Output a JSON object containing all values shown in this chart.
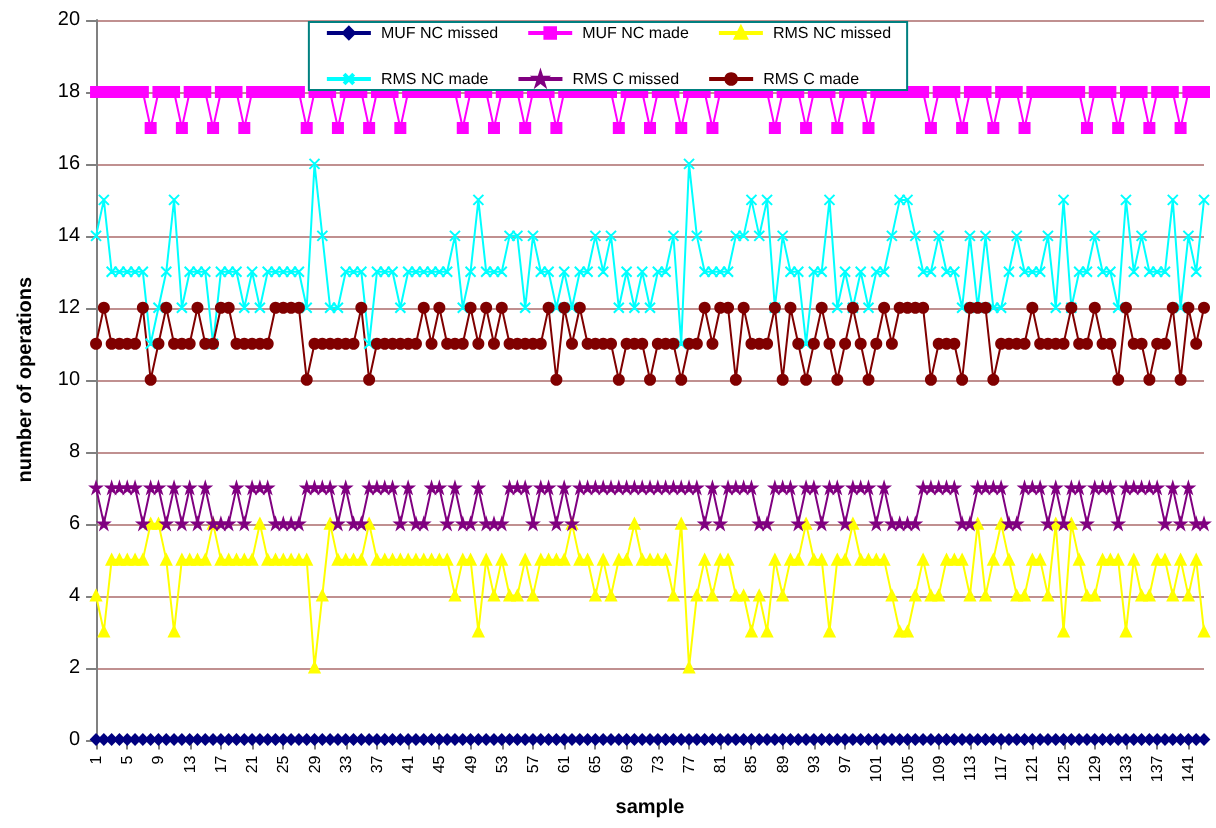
{
  "chart_data": {
    "type": "line",
    "xlabel": "sample",
    "ylabel": "number of operations",
    "x": [
      1,
      2,
      3,
      4,
      5,
      6,
      7,
      8,
      9,
      10,
      11,
      12,
      13,
      14,
      15,
      16,
      17,
      18,
      19,
      20,
      21,
      22,
      23,
      24,
      25,
      26,
      27,
      28,
      29,
      30,
      31,
      32,
      33,
      34,
      35,
      36,
      37,
      38,
      39,
      40,
      41,
      42,
      43,
      44,
      45,
      46,
      47,
      48,
      49,
      50,
      51,
      52,
      53,
      54,
      55,
      56,
      57,
      58,
      59,
      60,
      61,
      62,
      63,
      64,
      65,
      66,
      67,
      68,
      69,
      70,
      71,
      72,
      73,
      74,
      75,
      76,
      77,
      78,
      79,
      80,
      81,
      82,
      83,
      84,
      85,
      86,
      87,
      88,
      89,
      90,
      91,
      92,
      93,
      94,
      95,
      96,
      97,
      98,
      99,
      100,
      101,
      102,
      103,
      104,
      105,
      106,
      107,
      108,
      109,
      110,
      111,
      112,
      113,
      114,
      115,
      116,
      117,
      118,
      119,
      120,
      121,
      122,
      123,
      124,
      125,
      126,
      127,
      128,
      129,
      130,
      131,
      132,
      133,
      134,
      135,
      136,
      137,
      138,
      139,
      140,
      141,
      142,
      143
    ],
    "xlim": [
      1,
      143
    ],
    "xticks": [
      1,
      5,
      9,
      13,
      17,
      21,
      25,
      29,
      33,
      37,
      41,
      45,
      49,
      53,
      57,
      61,
      65,
      69,
      73,
      77,
      81,
      85,
      89,
      93,
      97,
      101,
      105,
      109,
      113,
      117,
      121,
      125,
      129,
      133,
      137,
      141
    ],
    "ylim": [
      0,
      20
    ],
    "yticks": [
      0,
      2,
      4,
      6,
      8,
      10,
      12,
      14,
      16,
      18,
      20
    ],
    "grid": "y",
    "legend": "top",
    "series": [
      {
        "name": "MUF NC missed",
        "color": "#000080",
        "marker": "diamond",
        "values": [
          0,
          0,
          0,
          0,
          0,
          0,
          0,
          0,
          0,
          0,
          0,
          0,
          0,
          0,
          0,
          0,
          0,
          0,
          0,
          0,
          0,
          0,
          0,
          0,
          0,
          0,
          0,
          0,
          0,
          0,
          0,
          0,
          0,
          0,
          0,
          0,
          0,
          0,
          0,
          0,
          0,
          0,
          0,
          0,
          0,
          0,
          0,
          0,
          0,
          0,
          0,
          0,
          0,
          0,
          0,
          0,
          0,
          0,
          0,
          0,
          0,
          0,
          0,
          0,
          0,
          0,
          0,
          0,
          0,
          0,
          0,
          0,
          0,
          0,
          0,
          0,
          0,
          0,
          0,
          0,
          0,
          0,
          0,
          0,
          0,
          0,
          0,
          0,
          0,
          0,
          0,
          0,
          0,
          0,
          0,
          0,
          0,
          0,
          0,
          0,
          0,
          0,
          0,
          0,
          0,
          0,
          0,
          0,
          0,
          0,
          0,
          0,
          0,
          0,
          0,
          0,
          0,
          0,
          0,
          0,
          0,
          0,
          0,
          0,
          0,
          0,
          0,
          0,
          0,
          0,
          0,
          0,
          0,
          0,
          0,
          0,
          0,
          0,
          0,
          0,
          0,
          0,
          0
        ]
      },
      {
        "name": "MUF NC made",
        "color": "#ff00ff",
        "marker": "square",
        "values": [
          18,
          18,
          18,
          18,
          18,
          18,
          18,
          17,
          18,
          18,
          18,
          17,
          18,
          18,
          18,
          17,
          18,
          18,
          18,
          17,
          18,
          18,
          18,
          18,
          18,
          18,
          18,
          17,
          18,
          18,
          18,
          17,
          18,
          18,
          18,
          17,
          18,
          18,
          18,
          17,
          18,
          18,
          18,
          18,
          18,
          18,
          18,
          17,
          18,
          18,
          18,
          17,
          18,
          18,
          18,
          17,
          18,
          18,
          18,
          17,
          18,
          18,
          18,
          18,
          18,
          18,
          18,
          17,
          18,
          18,
          18,
          17,
          18,
          18,
          18,
          17,
          18,
          18,
          18,
          17,
          18,
          18,
          18,
          18,
          18,
          18,
          18,
          17,
          18,
          18,
          18,
          17,
          18,
          18,
          18,
          17,
          18,
          18,
          18,
          17,
          18,
          18,
          18,
          18,
          18,
          18,
          18,
          17,
          18,
          18,
          18,
          17,
          18,
          18,
          18,
          17,
          18,
          18,
          18,
          17,
          18,
          18,
          18,
          18,
          18,
          18,
          18,
          17,
          18,
          18,
          18,
          17,
          18,
          18,
          18,
          17,
          18,
          18,
          18,
          17,
          18,
          18,
          18
        ]
      },
      {
        "name": "RMS NC missed",
        "color": "#ffff00",
        "marker": "triangle",
        "values": [
          4,
          3,
          5,
          5,
          5,
          5,
          5,
          6,
          6,
          5,
          3,
          5,
          5,
          5,
          5,
          6,
          5,
          5,
          5,
          5,
          5,
          6,
          5,
          5,
          5,
          5,
          5,
          5,
          2,
          4,
          6,
          5,
          5,
          5,
          5,
          6,
          5,
          5,
          5,
          5,
          5,
          5,
          5,
          5,
          5,
          5,
          4,
          5,
          5,
          3,
          5,
          4,
          5,
          4,
          4,
          5,
          4,
          5,
          5,
          5,
          5,
          6,
          5,
          5,
          4,
          5,
          4,
          5,
          5,
          6,
          5,
          5,
          5,
          5,
          4,
          6,
          2,
          4,
          5,
          4,
          5,
          5,
          4,
          4,
          3,
          4,
          3,
          5,
          4,
          5,
          5,
          6,
          5,
          5,
          3,
          5,
          5,
          6,
          5,
          5,
          5,
          5,
          4,
          3,
          3,
          4,
          5,
          4,
          4,
          5,
          5,
          5,
          4,
          6,
          4,
          5,
          6,
          5,
          4,
          4,
          5,
          5,
          4,
          6,
          3,
          6,
          5,
          4,
          4,
          5,
          5,
          5,
          3,
          5,
          4,
          4,
          5,
          5,
          4,
          5,
          4,
          5,
          3
        ]
      },
      {
        "name": "RMS NC made",
        "color": "#00ffff",
        "marker": "cross",
        "values": [
          14,
          15,
          13,
          13,
          13,
          13,
          13,
          11,
          12,
          13,
          15,
          12,
          13,
          13,
          13,
          11,
          13,
          13,
          13,
          12,
          13,
          12,
          13,
          13,
          13,
          13,
          13,
          12,
          16,
          14,
          12,
          12,
          13,
          13,
          13,
          11,
          13,
          13,
          13,
          12,
          13,
          13,
          13,
          13,
          13,
          13,
          14,
          12,
          13,
          15,
          13,
          13,
          13,
          14,
          14,
          12,
          14,
          13,
          13,
          12,
          13,
          12,
          13,
          13,
          14,
          13,
          14,
          12,
          13,
          12,
          13,
          12,
          13,
          13,
          14,
          11,
          16,
          14,
          13,
          13,
          13,
          13,
          14,
          14,
          15,
          14,
          15,
          12,
          14,
          13,
          13,
          11,
          13,
          13,
          15,
          12,
          13,
          12,
          13,
          12,
          13,
          13,
          14,
          15,
          15,
          14,
          13,
          13,
          14,
          13,
          13,
          12,
          14,
          12,
          14,
          12,
          12,
          13,
          14,
          13,
          13,
          13,
          14,
          12,
          15,
          12,
          13,
          13,
          14,
          13,
          13,
          12,
          15,
          13,
          14,
          13,
          13,
          13,
          15,
          12,
          14,
          13,
          15
        ]
      },
      {
        "name": "RMS C missed",
        "color": "#800080",
        "marker": "star",
        "values": [
          7,
          6,
          7,
          7,
          7,
          7,
          6,
          7,
          7,
          6,
          7,
          6,
          7,
          6,
          7,
          6,
          6,
          6,
          7,
          6,
          7,
          7,
          7,
          6,
          6,
          6,
          6,
          7,
          7,
          7,
          7,
          6,
          7,
          6,
          6,
          7,
          7,
          7,
          7,
          6,
          7,
          6,
          6,
          7,
          7,
          6,
          7,
          6,
          6,
          7,
          6,
          6,
          6,
          7,
          7,
          7,
          6,
          7,
          7,
          6,
          7,
          6,
          7,
          7,
          7,
          7,
          7,
          7,
          7,
          7,
          7,
          7,
          7,
          7,
          7,
          7,
          7,
          7,
          6,
          7,
          6,
          7,
          7,
          7,
          7,
          6,
          6,
          7,
          7,
          7,
          6,
          7,
          7,
          6,
          7,
          7,
          6,
          7,
          7,
          7,
          6,
          7,
          6,
          6,
          6,
          6,
          7,
          7,
          7,
          7,
          7,
          6,
          6,
          7,
          7,
          7,
          7,
          6,
          6,
          7,
          7,
          7,
          6,
          7,
          6,
          7,
          7,
          6,
          7,
          7,
          7,
          6,
          7,
          7,
          7,
          7,
          7,
          6,
          7,
          6,
          7,
          6,
          6
        ]
      },
      {
        "name": "RMS C made",
        "color": "#800000",
        "marker": "circle",
        "values": [
          11,
          12,
          11,
          11,
          11,
          11,
          12,
          10,
          11,
          12,
          11,
          11,
          11,
          12,
          11,
          11,
          12,
          12,
          11,
          11,
          11,
          11,
          11,
          12,
          12,
          12,
          12,
          10,
          11,
          11,
          11,
          11,
          11,
          11,
          12,
          10,
          11,
          11,
          11,
          11,
          11,
          11,
          12,
          11,
          12,
          11,
          11,
          11,
          12,
          11,
          12,
          11,
          12,
          11,
          11,
          11,
          11,
          11,
          12,
          10,
          12,
          11,
          12,
          11,
          11,
          11,
          11,
          10,
          11,
          11,
          11,
          10,
          11,
          11,
          11,
          10,
          11,
          11,
          12,
          11,
          12,
          12,
          10,
          12,
          11,
          11,
          11,
          12,
          10,
          12,
          11,
          10,
          11,
          12,
          11,
          10,
          11,
          12,
          11,
          10,
          11,
          12,
          11,
          12,
          12,
          12,
          12,
          10,
          11,
          11,
          11,
          10,
          12,
          12,
          12,
          10,
          11,
          11,
          11,
          11,
          12,
          11,
          11,
          11,
          11,
          12,
          11,
          11,
          12,
          11,
          11,
          10,
          12,
          11,
          11,
          10,
          11,
          11,
          12,
          10,
          12,
          11,
          12
        ]
      }
    ]
  }
}
